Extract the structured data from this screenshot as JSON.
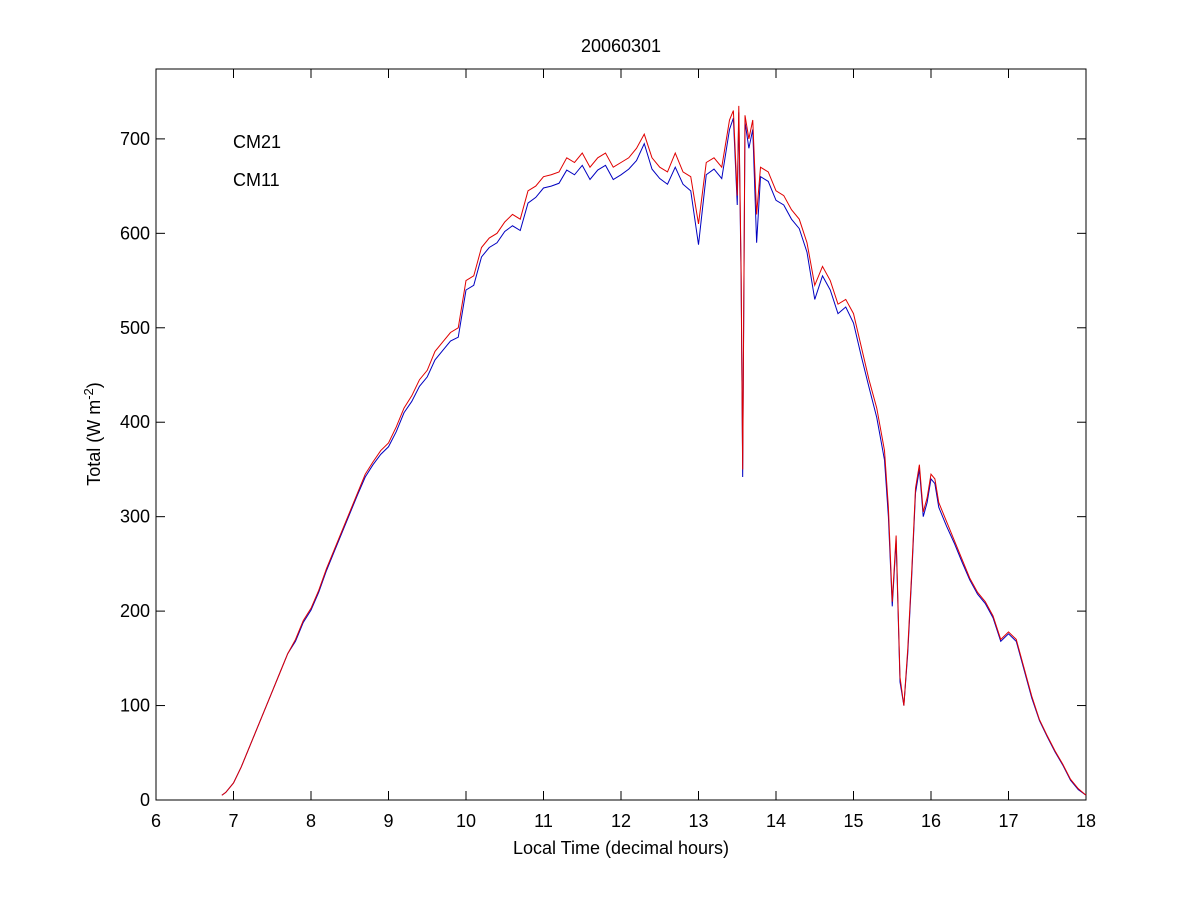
{
  "chart_data": {
    "type": "line",
    "title": "20060301",
    "x_label": "Local Time (decimal hours)",
    "y_label": [
      "Total (W m",
      "-2",
      ")"
    ],
    "xlim": [
      6,
      18
    ],
    "xticks": [
      6,
      7,
      8,
      9,
      10,
      11,
      12,
      13,
      14,
      15,
      16,
      17,
      18
    ],
    "ylim": [
      0,
      774
    ],
    "yticks": [
      0,
      100,
      200,
      300,
      400,
      500,
      600,
      700
    ],
    "x": [
      6.85,
      6.9,
      7.0,
      7.1,
      7.2,
      7.3,
      7.4,
      7.5,
      7.6,
      7.7,
      7.8,
      7.9,
      8.0,
      8.1,
      8.2,
      8.3,
      8.4,
      8.5,
      8.6,
      8.7,
      8.8,
      8.9,
      9.0,
      9.1,
      9.2,
      9.3,
      9.4,
      9.5,
      9.6,
      9.7,
      9.8,
      9.9,
      10.0,
      10.1,
      10.2,
      10.3,
      10.4,
      10.5,
      10.6,
      10.7,
      10.8,
      10.9,
      11.0,
      11.1,
      11.2,
      11.3,
      11.4,
      11.5,
      11.6,
      11.7,
      11.8,
      11.9,
      12.0,
      12.1,
      12.2,
      12.3,
      12.4,
      12.5,
      12.6,
      12.7,
      12.8,
      12.9,
      13.0,
      13.1,
      13.2,
      13.3,
      13.4,
      13.45,
      13.5,
      13.52,
      13.55,
      13.57,
      13.6,
      13.65,
      13.7,
      13.75,
      13.8,
      13.9,
      14.0,
      14.1,
      14.2,
      14.3,
      14.4,
      14.5,
      14.6,
      14.7,
      14.8,
      14.9,
      15.0,
      15.1,
      15.2,
      15.3,
      15.4,
      15.45,
      15.5,
      15.55,
      15.6,
      15.65,
      15.7,
      15.75,
      15.8,
      15.85,
      15.9,
      15.95,
      16.0,
      16.05,
      16.1,
      16.2,
      16.3,
      16.4,
      16.5,
      16.6,
      16.7,
      16.8,
      16.9,
      17.0,
      17.1,
      17.2,
      17.3,
      17.4,
      17.5,
      17.6,
      17.7,
      17.8,
      17.9,
      18.0
    ],
    "series": [
      {
        "name": "CM21",
        "color": "#0000c0",
        "values": [
          5,
          8,
          18,
          35,
          55,
          75,
          95,
          115,
          135,
          155,
          168,
          188,
          201,
          220,
          243,
          263,
          283,
          303,
          323,
          342,
          355,
          366,
          374,
          390,
          410,
          422,
          438,
          448,
          466,
          476,
          486,
          490,
          540,
          545,
          575,
          585,
          590,
          602,
          608,
          603,
          632,
          638,
          648,
          650,
          653,
          667,
          662,
          672,
          657,
          667,
          672,
          657,
          662,
          668,
          677,
          695,
          668,
          658,
          652,
          670,
          652,
          645,
          588,
          662,
          668,
          658,
          710,
          722,
          630,
          728,
          550,
          342,
          718,
          690,
          710,
          590,
          660,
          655,
          635,
          630,
          615,
          605,
          580,
          530,
          555,
          540,
          515,
          522,
          505,
          470,
          437,
          405,
          360,
          300,
          205,
          275,
          125,
          100,
          155,
          235,
          325,
          350,
          300,
          315,
          340,
          335,
          310,
          290,
          272,
          252,
          233,
          218,
          208,
          193,
          168,
          176,
          168,
          138,
          108,
          84,
          67,
          51,
          37,
          21,
          11,
          5
        ]
      },
      {
        "name": "CM11",
        "color": "#e00000",
        "values": [
          5,
          8,
          18,
          35,
          55,
          75,
          95,
          115,
          135,
          155,
          170,
          190,
          203,
          222,
          245,
          265,
          285,
          305,
          325,
          345,
          358,
          370,
          378,
          395,
          415,
          428,
          445,
          455,
          475,
          485,
          495,
          500,
          550,
          555,
          585,
          595,
          600,
          612,
          620,
          615,
          645,
          650,
          660,
          662,
          665,
          680,
          675,
          685,
          670,
          680,
          685,
          670,
          675,
          680,
          690,
          705,
          680,
          670,
          665,
          685,
          665,
          660,
          610,
          675,
          680,
          670,
          720,
          730,
          640,
          735,
          560,
          350,
          725,
          700,
          720,
          620,
          670,
          665,
          645,
          640,
          625,
          615,
          590,
          545,
          565,
          550,
          525,
          530,
          515,
          480,
          445,
          415,
          370,
          310,
          210,
          280,
          130,
          100,
          160,
          240,
          330,
          355,
          305,
          320,
          345,
          340,
          315,
          295,
          275,
          255,
          235,
          220,
          210,
          195,
          170,
          178,
          170,
          140,
          110,
          85,
          68,
          52,
          38,
          22,
          12,
          5
        ]
      }
    ]
  }
}
